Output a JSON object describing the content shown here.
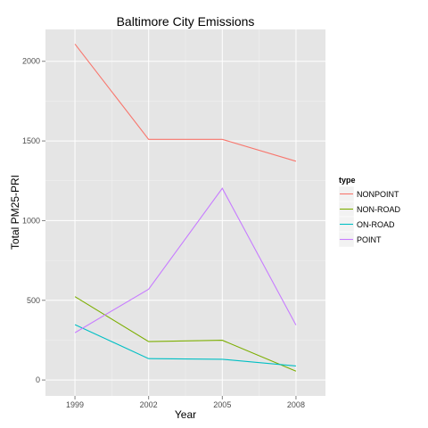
{
  "chart_data": {
    "type": "line",
    "title": "Baltimore City Emissions",
    "xlabel": "Year",
    "ylabel": "Total PM25-PRI",
    "x": [
      1999,
      2002,
      2005,
      2008
    ],
    "xticks": [
      "1999",
      "2002",
      "2005",
      "2008"
    ],
    "yticks": [
      0,
      500,
      1000,
      1500,
      2000
    ],
    "xlim": [
      1997.8,
      2009.2
    ],
    "ylim": [
      -100,
      2200
    ],
    "grid": true,
    "legend": {
      "title": "type",
      "position": "right"
    },
    "colors": {
      "panel": "#e5e5e5",
      "grid_major": "#ffffff",
      "grid_minor": "#f2f2f2",
      "tick": "#7f7f7f"
    },
    "series": [
      {
        "name": "NONPOINT",
        "color": "#F8766D",
        "values": [
          2108,
          1510,
          1510,
          1373
        ]
      },
      {
        "name": "NON-ROAD",
        "color": "#7CAE00",
        "values": [
          523,
          241,
          249,
          55
        ]
      },
      {
        "name": "ON-ROAD",
        "color": "#00BFC4",
        "values": [
          347,
          134,
          130,
          88
        ]
      },
      {
        "name": "POINT",
        "color": "#C77CFF",
        "values": [
          297,
          570,
          1203,
          345
        ]
      }
    ]
  }
}
